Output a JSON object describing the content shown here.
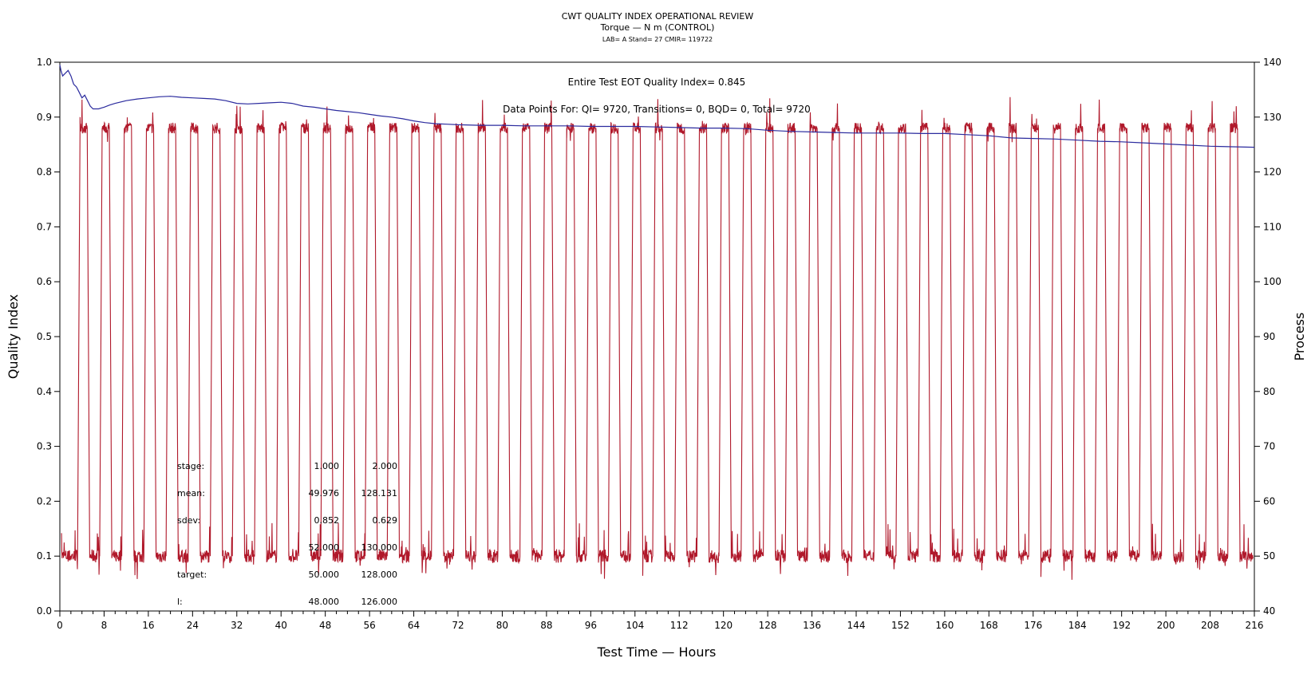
{
  "chart_data": {
    "type": "line",
    "title": "CWT QUALITY INDEX OPERATIONAL REVIEW",
    "subtitle": "Torque — N m (CONTROL)",
    "subtitle2": "LAB= A Stand= 27 CMIR= 119722",
    "xlabel": "Test Time — Hours",
    "ylabel": "Quality Index",
    "y2label": "Process",
    "xlim": [
      0,
      216
    ],
    "ylim": [
      0.0,
      1.0
    ],
    "y2lim": [
      40,
      140
    ],
    "xticks": [
      0,
      8,
      16,
      24,
      32,
      40,
      48,
      56,
      64,
      72,
      80,
      88,
      96,
      104,
      112,
      120,
      128,
      136,
      144,
      152,
      160,
      168,
      176,
      184,
      192,
      200,
      208,
      216
    ],
    "yticks": [
      "0.0",
      "0.1",
      "0.2",
      "0.3",
      "0.4",
      "0.5",
      "0.6",
      "0.7",
      "0.8",
      "0.9",
      "1.0"
    ],
    "y2ticks": [
      40,
      50,
      60,
      70,
      80,
      90,
      100,
      110,
      120,
      130,
      140
    ],
    "annotations": {
      "eot": "Entire Test EOT Quality Index=  0.845",
      "points": "Data Points For: QI=  9720, Transitions=     0, BQD=     0, Total=  9720"
    },
    "stats_table": [
      {
        "label": "stage:",
        "v1": "1.000",
        "v2": "2.000"
      },
      {
        "label": "mean:",
        "v1": "49.976",
        "v2": "128.131"
      },
      {
        "label": "sdev:",
        "v1": "0.852",
        "v2": "0.629"
      },
      {
        "label": "",
        "v1": "52.000",
        "v2": "130.000"
      },
      {
        "label": "target:",
        "v1": "50.000",
        "v2": "128.000"
      },
      {
        "label": "l:",
        "v1": "48.000",
        "v2": "126.000"
      }
    ],
    "series": [
      {
        "axis": "left",
        "color": "#2b2b9e",
        "x": [
          0,
          0.2,
          0.5,
          1,
          1.5,
          2,
          2.5,
          3,
          3.5,
          4,
          4.5,
          5,
          5.5,
          6,
          7,
          8,
          9,
          10,
          12,
          14,
          16,
          18,
          20,
          22,
          24,
          26,
          28,
          30,
          32,
          34,
          36,
          38,
          40,
          42,
          44,
          46,
          48,
          50,
          52,
          54,
          56,
          58,
          60,
          62,
          64,
          66,
          68,
          70,
          72,
          76,
          80,
          84,
          88,
          92,
          96,
          100,
          104,
          108,
          112,
          116,
          120,
          124,
          128,
          132,
          136,
          140,
          144,
          148,
          152,
          156,
          160,
          164,
          168,
          172,
          176,
          180,
          184,
          188,
          192,
          196,
          200,
          204,
          208,
          212,
          216
        ],
        "y": [
          0.995,
          0.985,
          0.975,
          0.98,
          0.985,
          0.975,
          0.96,
          0.955,
          0.945,
          0.935,
          0.94,
          0.93,
          0.92,
          0.915,
          0.915,
          0.918,
          0.922,
          0.925,
          0.93,
          0.933,
          0.935,
          0.937,
          0.938,
          0.936,
          0.935,
          0.934,
          0.933,
          0.93,
          0.925,
          0.924,
          0.925,
          0.926,
          0.927,
          0.925,
          0.92,
          0.918,
          0.915,
          0.912,
          0.91,
          0.908,
          0.905,
          0.902,
          0.9,
          0.897,
          0.893,
          0.89,
          0.888,
          0.887,
          0.886,
          0.885,
          0.885,
          0.884,
          0.884,
          0.884,
          0.883,
          0.883,
          0.883,
          0.882,
          0.881,
          0.88,
          0.88,
          0.879,
          0.876,
          0.874,
          0.873,
          0.872,
          0.871,
          0.871,
          0.871,
          0.87,
          0.87,
          0.868,
          0.866,
          0.862,
          0.861,
          0.86,
          0.858,
          0.856,
          0.855,
          0.853,
          0.851,
          0.849,
          0.847,
          0.846,
          0.845
        ]
      },
      {
        "axis": "right",
        "color": "#b0182a",
        "pattern": "square-wave",
        "low": 50,
        "high": 128,
        "low_noise": 1.2,
        "high_noise": 1.0,
        "rise_starts": [
          3.2,
          7.2,
          11.2,
          15.2,
          19.2,
          23.2,
          27.2,
          31.2,
          35.2,
          39.2,
          43.2,
          47.2,
          51.2,
          55.2,
          59.2,
          63.2,
          67.2,
          71.2,
          75.2,
          79.2,
          83.2,
          87.2,
          91.2,
          95.2,
          99.2,
          103.2,
          107.2,
          111.2,
          115.2,
          119.2,
          123.2,
          127.2,
          131.2,
          135.2,
          139.2,
          143.2,
          147.2,
          151.2,
          155.2,
          159.2,
          163.2,
          167.2,
          171.2,
          175.2,
          179.2,
          183.2,
          187.2,
          191.2,
          195.2,
          199.2,
          203.2,
          207.2,
          211.2
        ],
        "high_duration": 1.3
      }
    ]
  }
}
